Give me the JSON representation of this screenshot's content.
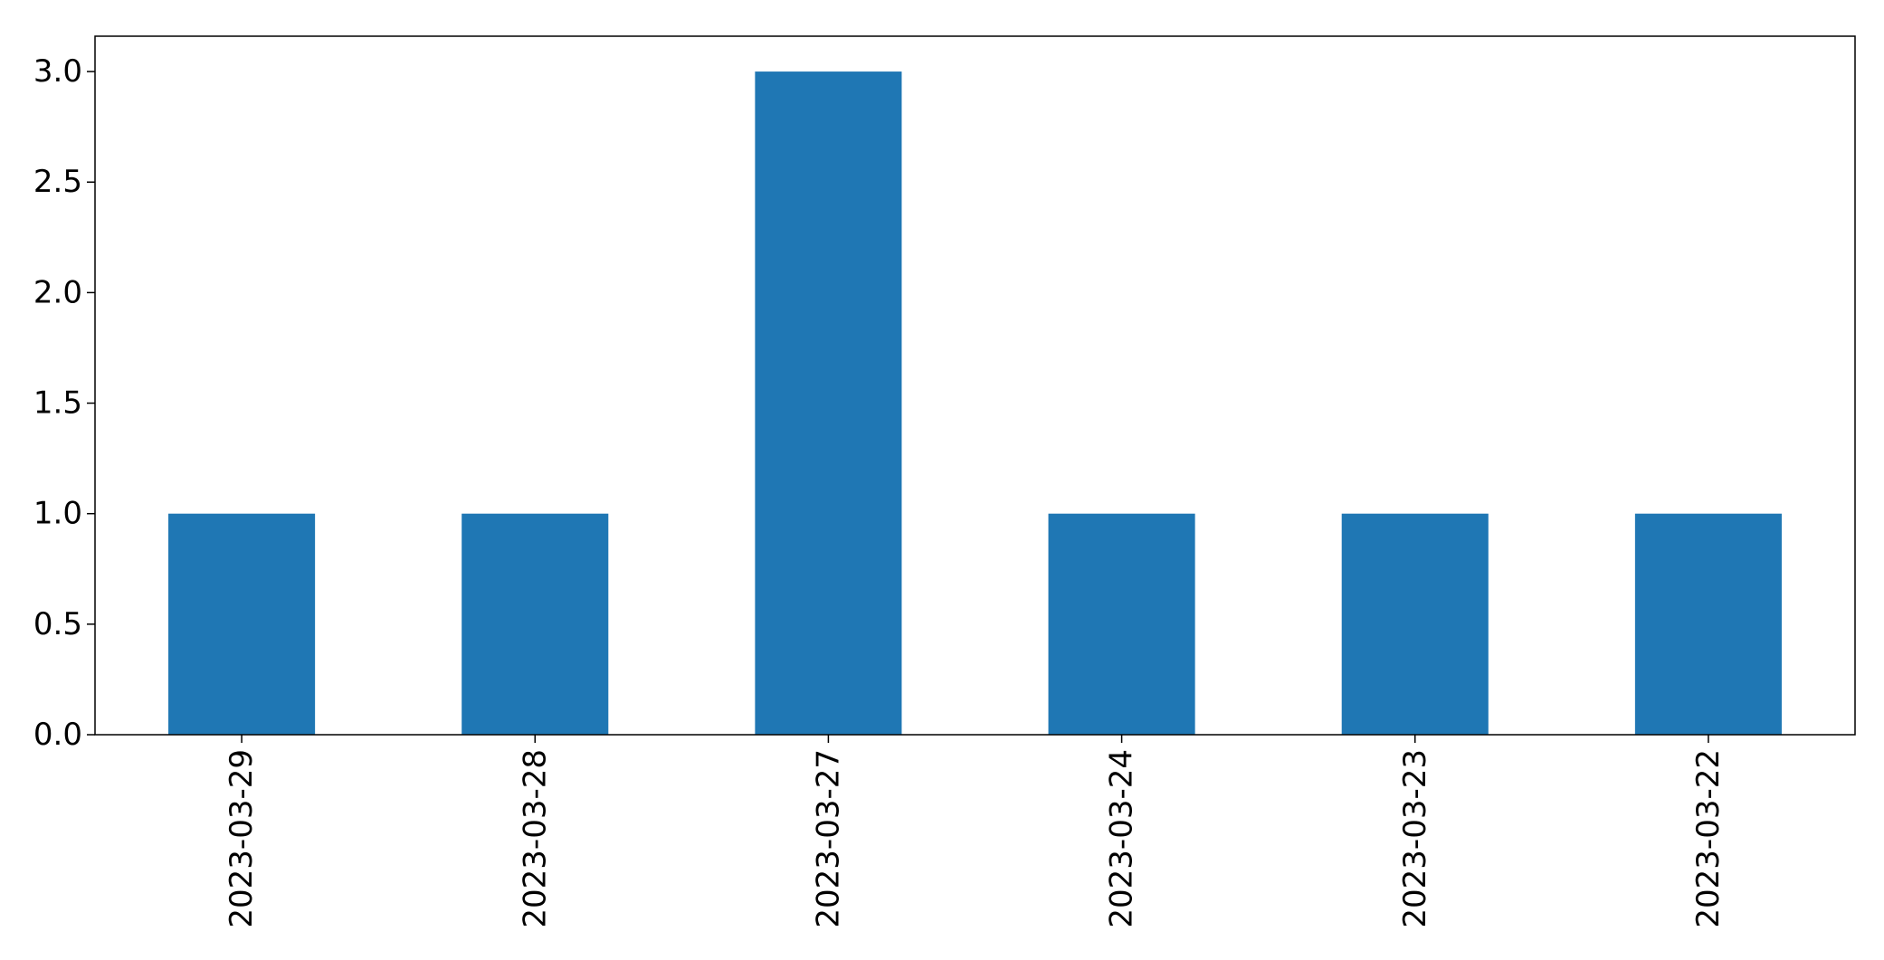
{
  "chart_data": {
    "type": "bar",
    "categories": [
      "2023-03-29",
      "2023-03-28",
      "2023-03-27",
      "2023-03-24",
      "2023-03-23",
      "2023-03-22"
    ],
    "values": [
      1,
      1,
      3,
      1,
      1,
      1
    ],
    "title": "",
    "xlabel": "",
    "ylabel": "",
    "ylim": [
      0,
      3.16
    ],
    "yticks": [
      0.0,
      0.5,
      1.0,
      1.5,
      2.0,
      2.5,
      3.0
    ],
    "ytick_labels": [
      "0.0",
      "0.5",
      "1.0",
      "1.5",
      "2.0",
      "2.5",
      "3.0"
    ],
    "x_tick_rotation": "vertical",
    "grid": false,
    "legend": "none",
    "bar_color": "#1f77b4"
  }
}
